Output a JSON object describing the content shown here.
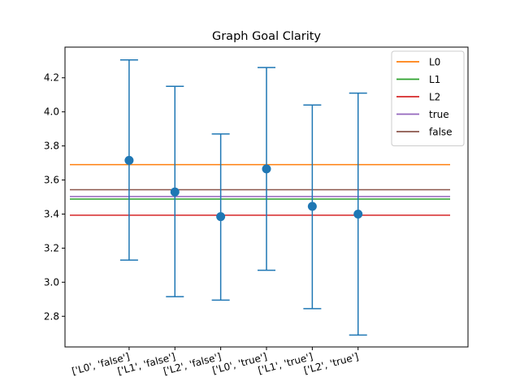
{
  "chart_data": {
    "type": "errorbar",
    "title": "Graph Goal Clarity",
    "xlabel": "",
    "ylabel": "",
    "categories": [
      "['L0', 'false']",
      "['L1', 'false']",
      "['L2', 'false']",
      "['L0', 'true']",
      "['L1', 'true']",
      "['L2', 'true']"
    ],
    "means": [
      3.715,
      3.53,
      3.385,
      3.665,
      3.445,
      3.4
    ],
    "lower": [
      3.13,
      2.915,
      2.895,
      3.07,
      2.845,
      2.69
    ],
    "upper": [
      4.305,
      4.15,
      3.87,
      4.26,
      4.04,
      4.11
    ],
    "point_color": "#1f77b4",
    "ylim": [
      2.62,
      4.38
    ],
    "yticks": [
      2.8,
      3.0,
      3.2,
      3.4,
      3.6,
      3.8,
      4.0,
      4.2
    ],
    "xtick_rotation": -15,
    "grid": false,
    "legend_position": "top-right",
    "reference_lines": [
      {
        "name": "L0",
        "value": 3.69,
        "color": "#ff7f0e"
      },
      {
        "name": "L1",
        "value": 3.488,
        "color": "#2ca02c"
      },
      {
        "name": "L2",
        "value": 3.393,
        "color": "#d62728"
      },
      {
        "name": "true",
        "value": 3.503,
        "color": "#9467bd"
      },
      {
        "name": "false",
        "value": 3.543,
        "color": "#8c564b"
      }
    ]
  }
}
